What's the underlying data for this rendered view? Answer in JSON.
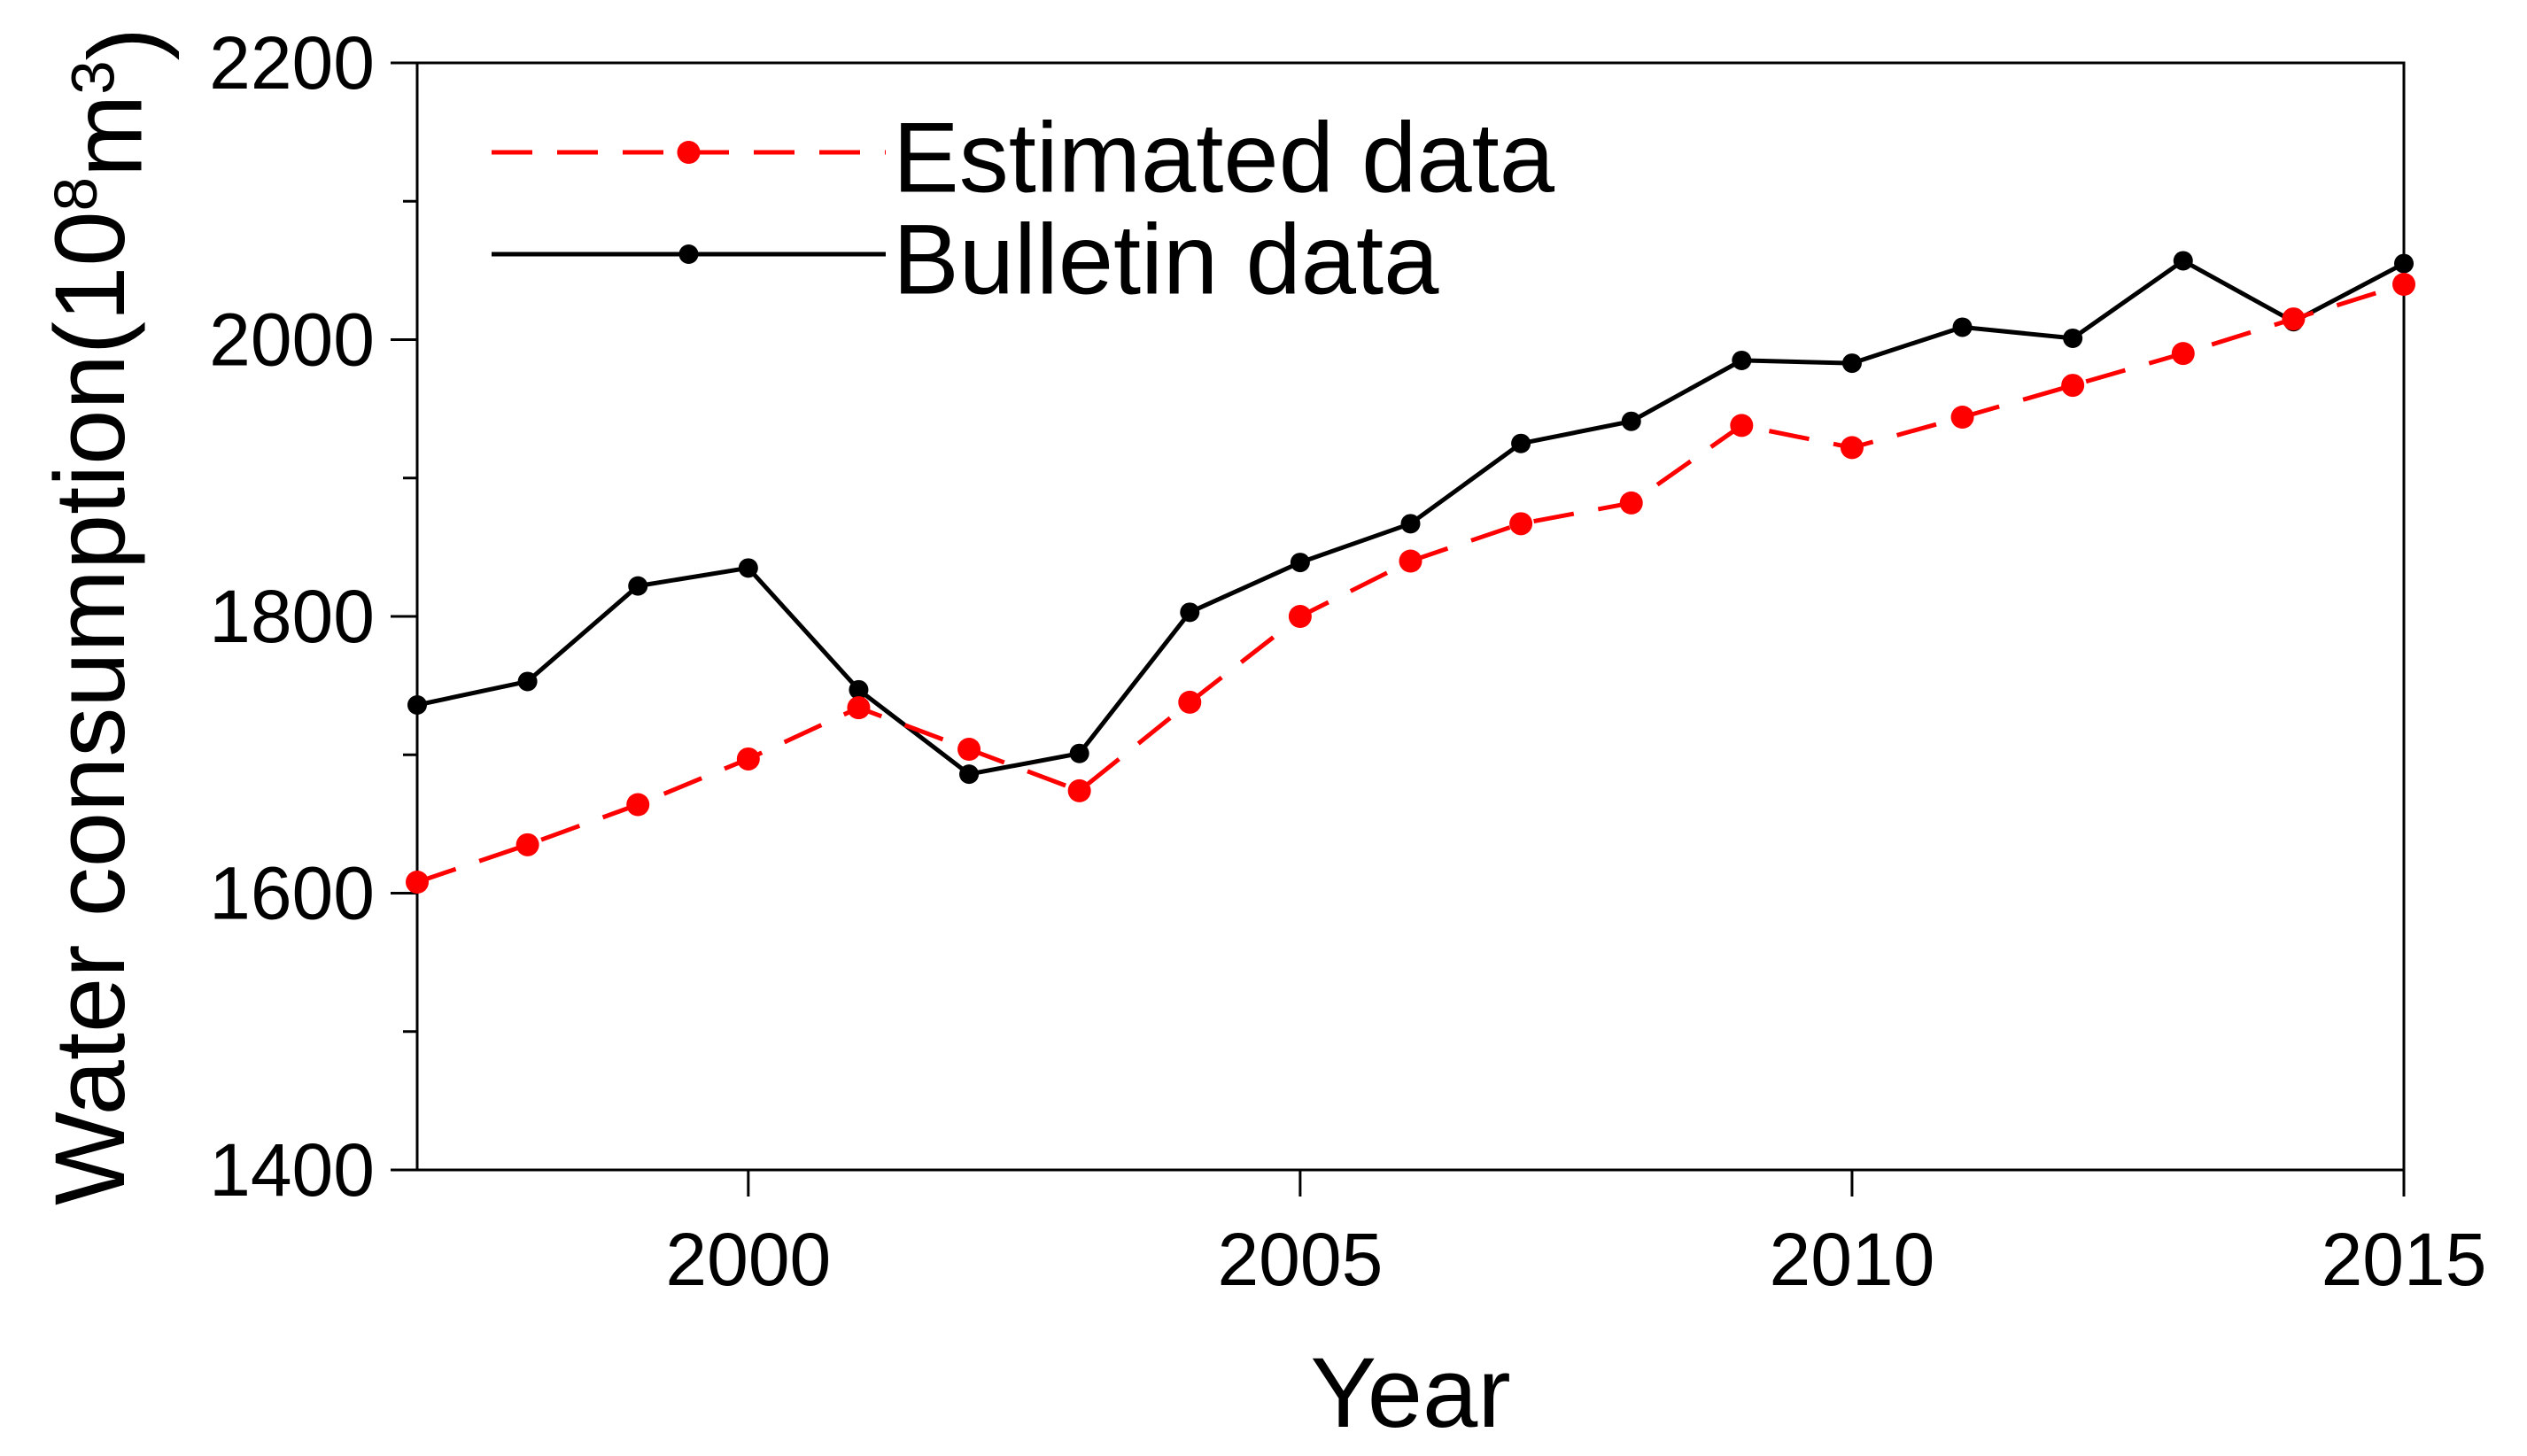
{
  "chart_data": {
    "type": "line",
    "title": "",
    "xlabel": "Year",
    "ylabel": "Water consumption(10⁸m³)",
    "ylabel_parts": [
      {
        "t": "Water consumption(10",
        "sup": false
      },
      {
        "t": "8",
        "sup": true
      },
      {
        "t": "m",
        "sup": false
      },
      {
        "t": "3",
        "sup": true
      },
      {
        "t": ")",
        "sup": false
      }
    ],
    "x": [
      1997,
      1998,
      1999,
      2000,
      2001,
      2002,
      2003,
      2004,
      2005,
      2006,
      2007,
      2008,
      2009,
      2010,
      2011,
      2012,
      2013,
      2014,
      2015
    ],
    "series": [
      {
        "name": "Estimated data",
        "color": "#ff0000",
        "line_style": "dashed",
        "marker": "circle",
        "values": [
          1608,
          1635,
          1664,
          1697,
          1734,
          1704,
          1674,
          1738,
          1800,
          1840,
          1867,
          1882,
          1938,
          1922,
          1944,
          1967,
          1990,
          2015,
          2040
        ]
      },
      {
        "name": "Bulletin data",
        "color": "#000000",
        "line_style": "solid",
        "marker": "circle",
        "values": [
          1736,
          1753,
          1822,
          1835,
          1747,
          1686,
          1701,
          1803,
          1839,
          1867,
          1925,
          1941,
          1985,
          1983,
          2009,
          2001,
          2057,
          2013,
          2055
        ]
      }
    ],
    "xlim": [
      1997,
      2015
    ],
    "ylim": [
      1400,
      2200
    ],
    "x_ticks_major": [
      2000,
      2005,
      2010,
      2015
    ],
    "x_tick_labels": [
      "2000",
      "2005",
      "2010",
      "2015"
    ],
    "y_ticks_major": [
      1400,
      1600,
      1800,
      2000,
      2200
    ],
    "y_tick_labels": [
      "1400",
      "1600",
      "1800",
      "2000",
      "2200"
    ],
    "y_ticks_minor": [
      1500,
      1700,
      1900,
      2100
    ],
    "grid": false,
    "legend_position": "upper-left-inside",
    "legend_entries": [
      "Estimated data",
      "Bulletin data"
    ],
    "colors": {
      "estimated": "#ff0000",
      "bulletin": "#000000",
      "axis": "#000000",
      "background": "#ffffff"
    }
  }
}
